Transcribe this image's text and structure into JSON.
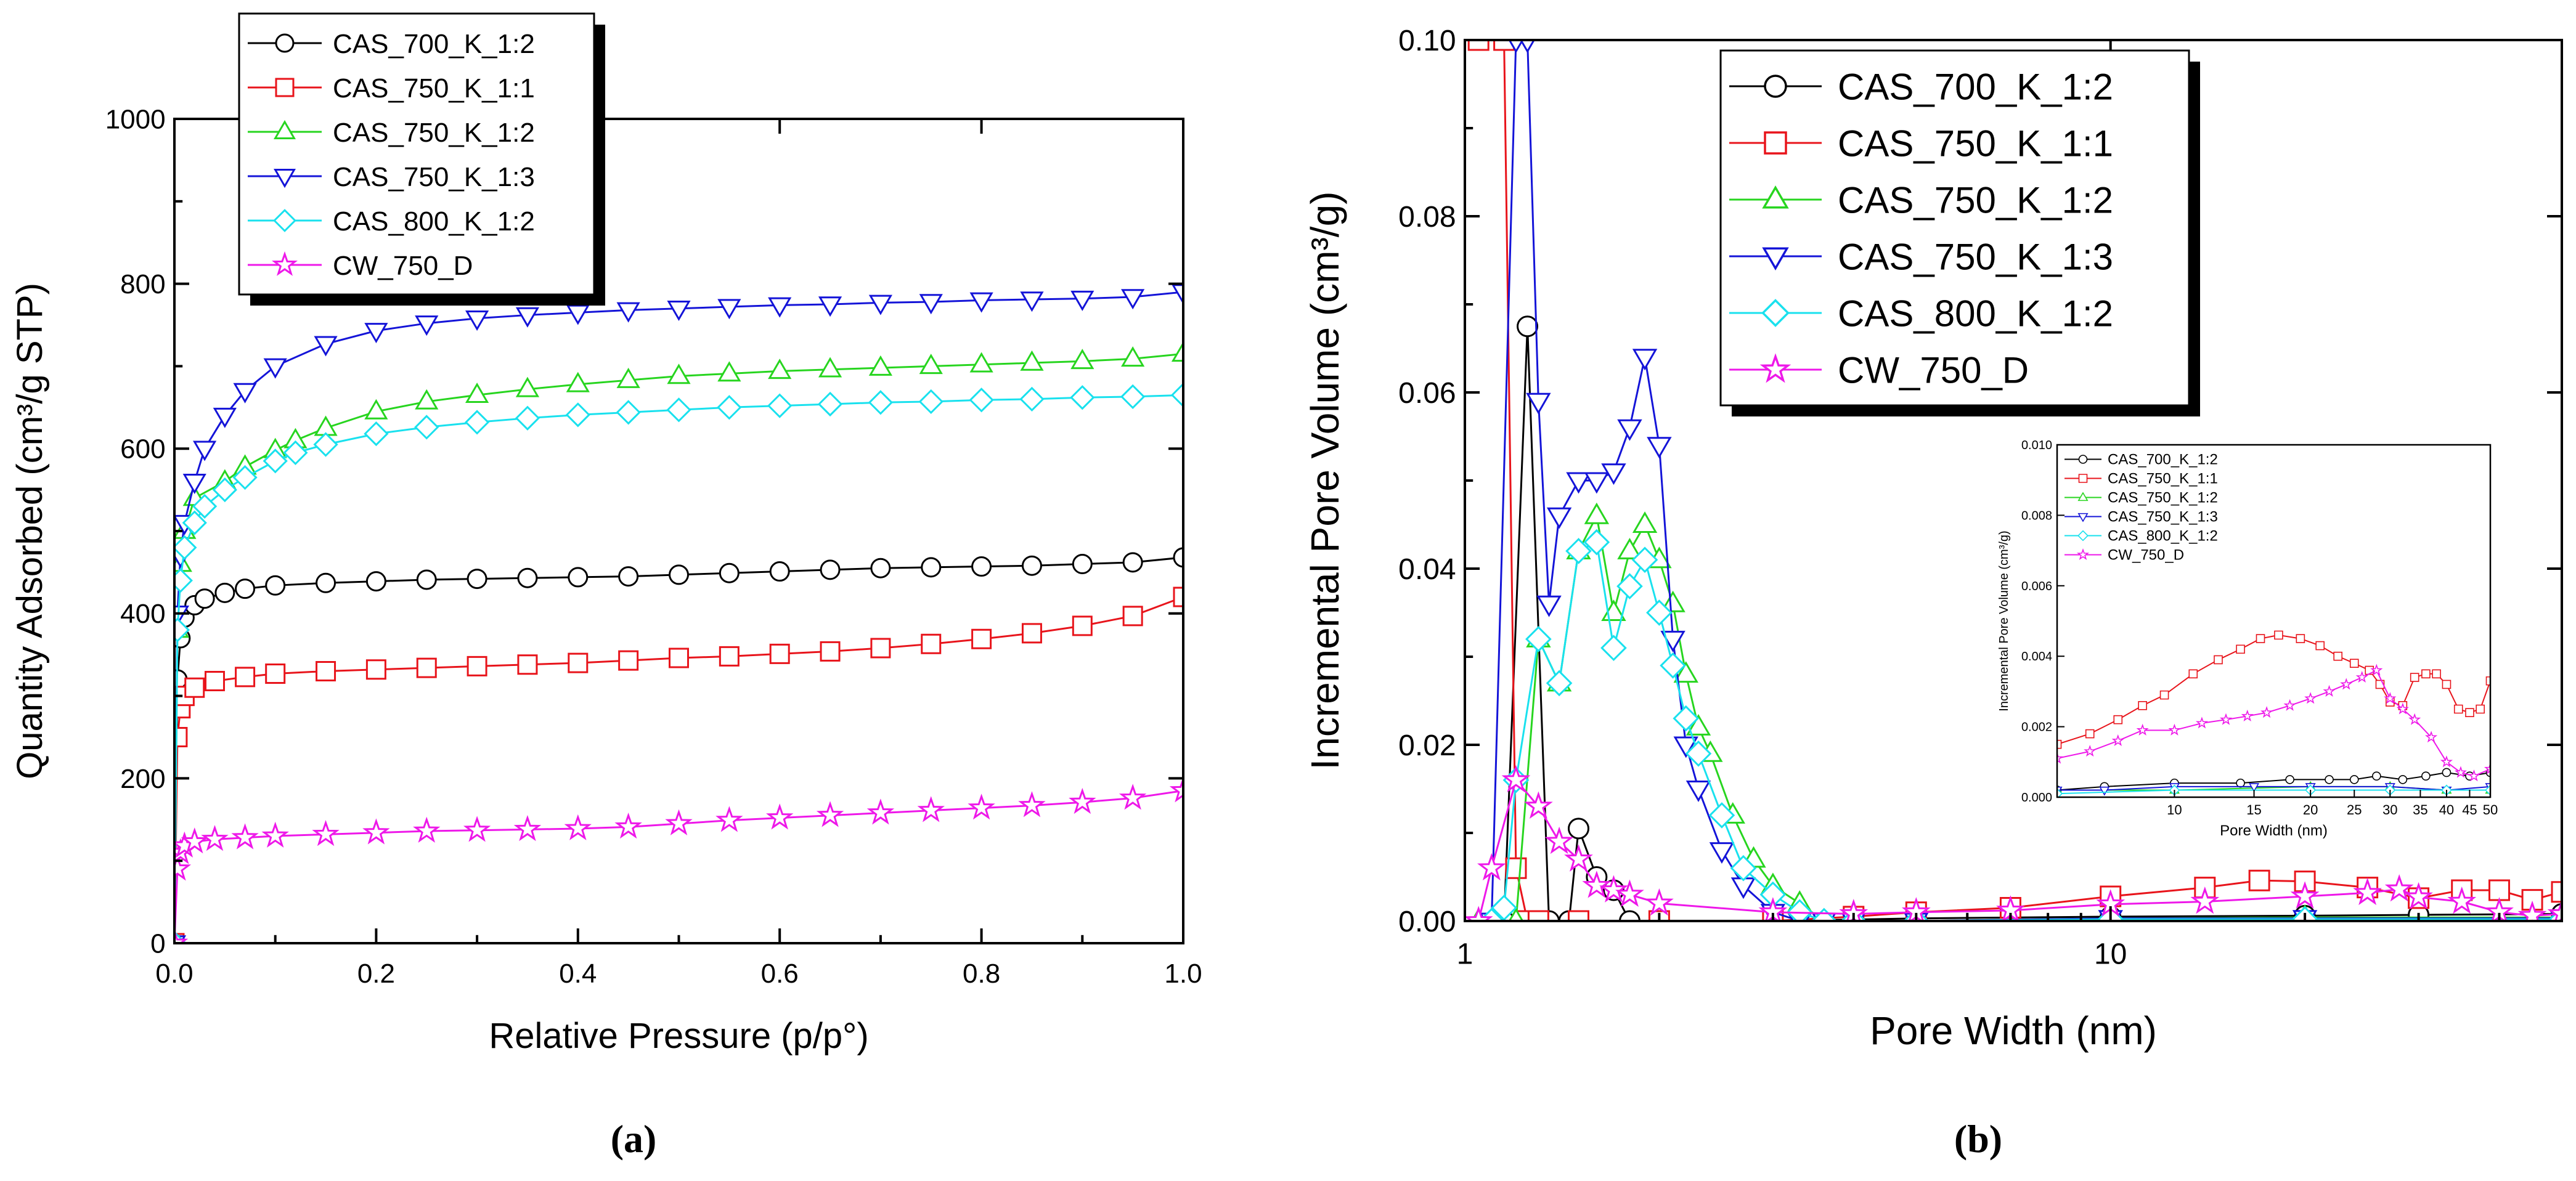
{
  "figure": {
    "panel_a_label": "(a)",
    "panel_b_label": "(b)"
  },
  "colors": {
    "CAS_700_K_1:2": "#000000",
    "CAS_750_K_1:1": "#e8141b",
    "CAS_750_K_1:2": "#27d51f",
    "CAS_750_K_1:3": "#1414d8",
    "CAS_800_K_1:2": "#19e1ee",
    "CW_750_D": "#ee18e9"
  },
  "chart_data": [
    {
      "id": "a",
      "type": "line",
      "title": "",
      "xlabel": "Relative Pressure (p/p°)",
      "ylabel": "Quantity Adsorbed (cm³/g STP)",
      "xlim": [
        0,
        1
      ],
      "ylim": [
        0,
        1000
      ],
      "x_ticks": [
        "0.0",
        "0.2",
        "0.4",
        "0.6",
        "0.8",
        "1.0"
      ],
      "y_ticks": [
        "0",
        "200",
        "400",
        "600",
        "800",
        "1000"
      ],
      "legend_position": "top-left-outside",
      "series": [
        {
          "name": "CAS_700_K_1:2",
          "marker": "circle",
          "x": [
            0.0,
            0.003,
            0.006,
            0.01,
            0.02,
            0.03,
            0.05,
            0.07,
            0.1,
            0.15,
            0.2,
            0.25,
            0.3,
            0.35,
            0.4,
            0.45,
            0.5,
            0.55,
            0.6,
            0.65,
            0.7,
            0.75,
            0.8,
            0.85,
            0.9,
            0.95,
            1.0
          ],
          "y": [
            0,
            320,
            370,
            395,
            410,
            418,
            425,
            430,
            434,
            437,
            439,
            441,
            442,
            443,
            444,
            445,
            447,
            449,
            451,
            453,
            455,
            456,
            457,
            458,
            460,
            462,
            468
          ]
        },
        {
          "name": "CAS_750_K_1:1",
          "marker": "square",
          "x": [
            0.0,
            0.003,
            0.006,
            0.01,
            0.02,
            0.04,
            0.07,
            0.1,
            0.15,
            0.2,
            0.25,
            0.3,
            0.35,
            0.4,
            0.45,
            0.5,
            0.55,
            0.6,
            0.65,
            0.7,
            0.75,
            0.8,
            0.85,
            0.9,
            0.95,
            1.0
          ],
          "y": [
            0,
            250,
            285,
            300,
            310,
            318,
            323,
            327,
            330,
            332,
            334,
            336,
            338,
            340,
            343,
            346,
            348,
            351,
            354,
            358,
            363,
            369,
            376,
            385,
            397,
            420
          ]
        },
        {
          "name": "CAS_750_K_1:2",
          "marker": "triangle-up",
          "x": [
            0.0,
            0.003,
            0.006,
            0.01,
            0.02,
            0.05,
            0.07,
            0.1,
            0.12,
            0.15,
            0.2,
            0.25,
            0.3,
            0.35,
            0.4,
            0.45,
            0.5,
            0.55,
            0.6,
            0.65,
            0.7,
            0.75,
            0.8,
            0.85,
            0.9,
            0.95,
            1.0
          ],
          "y": [
            0,
            380,
            460,
            500,
            540,
            560,
            578,
            598,
            610,
            625,
            645,
            657,
            665,
            672,
            678,
            683,
            688,
            691,
            694,
            696,
            698,
            700,
            702,
            704,
            706,
            709,
            715
          ]
        },
        {
          "name": "CAS_750_K_1:3",
          "marker": "triangle-down",
          "x": [
            0.0,
            0.003,
            0.006,
            0.01,
            0.02,
            0.03,
            0.05,
            0.07,
            0.1,
            0.15,
            0.2,
            0.25,
            0.3,
            0.35,
            0.4,
            0.45,
            0.5,
            0.55,
            0.6,
            0.65,
            0.7,
            0.75,
            0.8,
            0.85,
            0.9,
            0.95,
            1.0
          ],
          "y": [
            0,
            400,
            470,
            510,
            560,
            600,
            640,
            670,
            700,
            727,
            743,
            752,
            758,
            762,
            765,
            768,
            770,
            772,
            774,
            775,
            777,
            778,
            780,
            781,
            782,
            784,
            790
          ]
        },
        {
          "name": "CAS_800_K_1:2",
          "marker": "diamond",
          "x": [
            0.0,
            0.003,
            0.006,
            0.01,
            0.02,
            0.03,
            0.05,
            0.07,
            0.1,
            0.12,
            0.15,
            0.2,
            0.25,
            0.3,
            0.35,
            0.4,
            0.45,
            0.5,
            0.55,
            0.6,
            0.65,
            0.7,
            0.75,
            0.8,
            0.85,
            0.9,
            0.95,
            1.0
          ],
          "y": [
            0,
            380,
            440,
            480,
            510,
            530,
            550,
            565,
            585,
            595,
            605,
            618,
            626,
            632,
            637,
            641,
            644,
            647,
            650,
            652,
            654,
            656,
            657,
            659,
            660,
            662,
            663,
            665
          ]
        },
        {
          "name": "CW_750_D",
          "marker": "star",
          "x": [
            0.0,
            0.003,
            0.006,
            0.01,
            0.02,
            0.04,
            0.07,
            0.1,
            0.15,
            0.2,
            0.25,
            0.3,
            0.35,
            0.4,
            0.45,
            0.5,
            0.55,
            0.6,
            0.65,
            0.7,
            0.75,
            0.8,
            0.85,
            0.9,
            0.95,
            1.0
          ],
          "y": [
            0,
            90,
            110,
            118,
            123,
            126,
            128,
            130,
            132,
            134,
            136,
            137,
            138,
            139,
            141,
            145,
            149,
            152,
            155,
            158,
            161,
            164,
            167,
            171,
            176,
            185
          ]
        }
      ]
    },
    {
      "id": "b",
      "type": "line",
      "title": "",
      "xlabel": "Pore Width (nm)",
      "ylabel": "Incremental Pore Volume (cm³/g)",
      "xscale": "log",
      "xlim": [
        1,
        50
      ],
      "ylim": [
        0,
        0.1
      ],
      "x_ticks": [
        {
          "value": 1,
          "label": "1"
        },
        {
          "value": 10,
          "label": "10"
        }
      ],
      "x_minor_ticks": [
        2,
        3,
        4,
        5,
        6,
        7,
        8,
        9,
        20,
        30,
        40
      ],
      "y_ticks": [
        "0.00",
        "0.02",
        "0.04",
        "0.06",
        "0.08",
        "0.10"
      ],
      "legend_position": "top-center",
      "series": [
        {
          "name": "CAS_700_K_1:2",
          "marker": "circle",
          "x": [
            1.15,
            1.25,
            1.35,
            1.45,
            1.5,
            1.6,
            1.7,
            1.8,
            2.0,
            3.0,
            5.0,
            10,
            20,
            30,
            50
          ],
          "y": [
            0.0,
            0.0675,
            0.0,
            0.0,
            0.0105,
            0.005,
            0.0035,
            0.0,
            0.0,
            0.0,
            0.0003,
            0.0005,
            0.0006,
            0.0007,
            0.0008
          ]
        },
        {
          "name": "CAS_750_K_1:1",
          "marker": "square",
          "x": [
            1.05,
            1.15,
            1.2,
            1.25,
            1.3,
            1.5,
            2.0,
            3.0,
            4.0,
            5.0,
            7.0,
            10,
            14,
            17,
            20,
            25,
            30,
            35,
            40,
            45,
            50
          ],
          "y": [
            0.1,
            0.1,
            0.006,
            0.0,
            0.0,
            0.0,
            0.0,
            0.0,
            0.0005,
            0.001,
            0.0015,
            0.0028,
            0.0038,
            0.0046,
            0.0045,
            0.0038,
            0.0026,
            0.0035,
            0.0035,
            0.0024,
            0.0033
          ]
        },
        {
          "name": "CAS_750_K_1:2",
          "marker": "triangle-up",
          "x": [
            1.05,
            1.1,
            1.2,
            1.3,
            1.4,
            1.5,
            1.6,
            1.7,
            1.8,
            1.9,
            2.0,
            2.1,
            2.2,
            2.3,
            2.4,
            2.6,
            2.8,
            3.0,
            3.3,
            3.6,
            4.0,
            5.0,
            10,
            20,
            50
          ],
          "y": [
            0.0,
            0.0,
            0.0,
            0.032,
            0.027,
            0.042,
            0.046,
            0.035,
            0.042,
            0.045,
            0.041,
            0.036,
            0.028,
            0.022,
            0.019,
            0.012,
            0.007,
            0.004,
            0.002,
            0.0,
            0.0,
            0.0,
            0.0003,
            0.0004,
            0.0004
          ]
        },
        {
          "name": "CAS_750_K_1:3",
          "marker": "triangle-down",
          "x": [
            1.1,
            1.2,
            1.25,
            1.3,
            1.35,
            1.4,
            1.5,
            1.6,
            1.7,
            1.8,
            1.9,
            2.0,
            2.1,
            2.2,
            2.3,
            2.5,
            2.7,
            3.0,
            3.3,
            3.6,
            4.0,
            5.0,
            10,
            20,
            50
          ],
          "y": [
            0.0,
            0.1,
            0.1,
            0.059,
            0.036,
            0.046,
            0.05,
            0.05,
            0.051,
            0.056,
            0.064,
            0.054,
            0.032,
            0.02,
            0.015,
            0.008,
            0.004,
            0.001,
            0.0,
            0.0,
            0.0,
            0.0,
            0.0003,
            0.0003,
            0.0003
          ]
        },
        {
          "name": "CAS_800_K_1:2",
          "marker": "diamond",
          "x": [
            1.1,
            1.15,
            1.2,
            1.3,
            1.4,
            1.5,
            1.6,
            1.7,
            1.8,
            1.9,
            2.0,
            2.1,
            2.2,
            2.3,
            2.5,
            2.7,
            3.0,
            3.3,
            3.6,
            4.0,
            5.0,
            10,
            20,
            50
          ],
          "y": [
            0.0,
            0.0015,
            0.016,
            0.032,
            0.027,
            0.042,
            0.043,
            0.031,
            0.038,
            0.041,
            0.035,
            0.029,
            0.023,
            0.019,
            0.012,
            0.006,
            0.003,
            0.001,
            0.0,
            0.0,
            0.0,
            0.0002,
            0.0002,
            0.0002
          ]
        },
        {
          "name": "CW_750_D",
          "marker": "star",
          "x": [
            1.05,
            1.1,
            1.2,
            1.3,
            1.4,
            1.5,
            1.6,
            1.7,
            1.8,
            2.0,
            3.0,
            4.0,
            5.0,
            7.0,
            10,
            14,
            20,
            25,
            28,
            30,
            35,
            40,
            45,
            50
          ],
          "y": [
            0.0,
            0.006,
            0.016,
            0.013,
            0.009,
            0.007,
            0.004,
            0.0035,
            0.003,
            0.002,
            0.001,
            0.0008,
            0.001,
            0.0012,
            0.0019,
            0.0022,
            0.0028,
            0.0032,
            0.0036,
            0.0027,
            0.0022,
            0.001,
            0.0006,
            0.0008
          ]
        }
      ],
      "inset": {
        "xlabel": "Pore Width (nm)",
        "ylabel": "Incremental Pore Volume (cm³/g)",
        "xscale": "log",
        "xlim": [
          5.5,
          50
        ],
        "ylim": [
          0,
          0.01
        ],
        "x_ticks": [
          "10",
          "15",
          "20",
          "25",
          "30",
          "35",
          "40",
          "45",
          "50"
        ],
        "y_ticks": [
          "0.000",
          "0.002",
          "0.004",
          "0.006",
          "0.008",
          "0.010"
        ],
        "legend_position": "top-left",
        "series": [
          {
            "name": "CAS_700_K_1:2",
            "marker": "circle",
            "x": [
              5.5,
              7,
              10,
              14,
              18,
              22,
              25,
              28,
              32,
              36,
              40,
              45,
              50
            ],
            "y": [
              0.0002,
              0.0003,
              0.0004,
              0.0004,
              0.0005,
              0.0005,
              0.0005,
              0.0006,
              0.0005,
              0.0006,
              0.0007,
              0.0006,
              0.0007
            ]
          },
          {
            "name": "CAS_750_K_1:1",
            "marker": "square",
            "x": [
              5.5,
              6.5,
              7.5,
              8.5,
              9.5,
              11,
              12.5,
              14,
              15.5,
              17,
              19,
              21,
              23,
              25,
              27,
              28.5,
              30,
              32,
              34,
              36,
              38,
              40,
              42.5,
              45,
              47.5,
              50
            ],
            "y": [
              0.0015,
              0.0018,
              0.0022,
              0.0026,
              0.0029,
              0.0035,
              0.0039,
              0.0042,
              0.0045,
              0.0046,
              0.0045,
              0.0043,
              0.004,
              0.0038,
              0.0036,
              0.0032,
              0.0027,
              0.0026,
              0.0034,
              0.0035,
              0.0035,
              0.0032,
              0.0025,
              0.0024,
              0.0025,
              0.0033
            ]
          },
          {
            "name": "CAS_750_K_1:2",
            "marker": "triangle-up",
            "x": [
              5.5,
              10,
              20,
              30,
              40,
              50
            ],
            "y": [
              0.0002,
              0.0002,
              0.0003,
              0.0003,
              0.0002,
              0.0002
            ]
          },
          {
            "name": "CAS_750_K_1:3",
            "marker": "triangle-down",
            "x": [
              5.5,
              7,
              10,
              15,
              20,
              30,
              40,
              50
            ],
            "y": [
              0.0002,
              0.0002,
              0.0003,
              0.0003,
              0.0003,
              0.0003,
              0.0002,
              0.0003
            ]
          },
          {
            "name": "CAS_800_K_1:2",
            "marker": "diamond",
            "x": [
              5.5,
              10,
              20,
              30,
              40,
              50
            ],
            "y": [
              0.0001,
              0.0002,
              0.0002,
              0.0002,
              0.0002,
              0.0002
            ]
          },
          {
            "name": "CW_750_D",
            "marker": "star",
            "x": [
              5.5,
              6.5,
              7.5,
              8.5,
              10,
              11.5,
              13,
              14.5,
              16,
              18,
              20,
              22,
              24,
              26,
              28,
              30,
              32,
              34,
              37,
              40,
              43,
              46,
              50
            ],
            "y": [
              0.0011,
              0.0013,
              0.0016,
              0.0019,
              0.0019,
              0.0021,
              0.0022,
              0.0023,
              0.0024,
              0.0026,
              0.0028,
              0.003,
              0.0032,
              0.0034,
              0.0036,
              0.0028,
              0.0025,
              0.0022,
              0.0017,
              0.001,
              0.0007,
              0.0006,
              0.0008
            ]
          }
        ]
      }
    }
  ]
}
